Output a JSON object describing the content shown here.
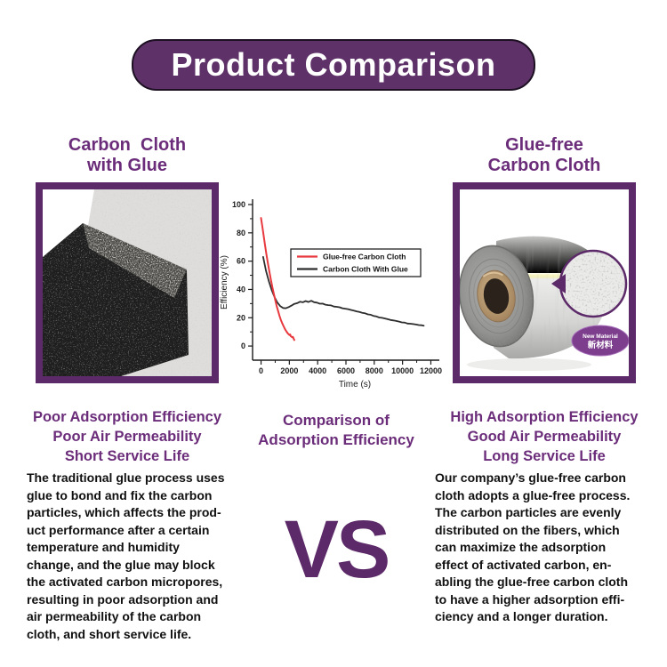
{
  "banner": {
    "title": "Product Comparison"
  },
  "left_column": {
    "heading": "Carbon  Cloth\nwith Glue",
    "subtitle": "Poor Adsorption Efficiency\nPoor Air Permeability\nShort Service Life",
    "body": "The traditional glue process uses\nglue to bond and fix the carbon\nparticles, which affects the prod-\nuct performance after a certain\ntemperature and humidity\nchange, and the glue may block\nthe activated carbon micropores,\nresulting in poor adsorption and\nair permeability of the carbon\ncloth, and short service life."
  },
  "center_column": {
    "subtitle": "Comparison of\nAdsorption Efficiency",
    "vs_label": "VS"
  },
  "right_column": {
    "heading": "Glue-free\nCarbon Cloth",
    "subtitle": "High Adsorption Efficiency\nGood Air Permeability\nLong Service Life",
    "body": "Our company’s glue-free carbon\ncloth adopts a glue-free process.\nThe carbon particles are evenly\ndistributed on the fibers, which\ncan maximize the adsorption\neffect of activated carbon, en-\nabling the glue-free carbon cloth\nto have a higher adsorption effi-\nciency and a longer duration.",
    "badge_line1": "New Material",
    "badge_line2": "新材料"
  },
  "chart_data": {
    "type": "line",
    "title": "",
    "xlabel": "Time (s)",
    "ylabel": "Efficiency (%)",
    "xlim": [
      -600,
      12600
    ],
    "ylim": [
      -10,
      100
    ],
    "xticks": [
      0,
      2000,
      4000,
      6000,
      8000,
      10000,
      12000
    ],
    "yticks": [
      0,
      20,
      40,
      60,
      80,
      100
    ],
    "grid": false,
    "legend_position": "inside upper center",
    "series": [
      {
        "name": "Glue-free Carbon Cloth",
        "color": "#e8393e",
        "points": [
          [
            0,
            90.5
          ],
          [
            100,
            84.0
          ],
          [
            200,
            77.0
          ],
          [
            300,
            70.0
          ],
          [
            400,
            63.5
          ],
          [
            500,
            57.5
          ],
          [
            600,
            52.0
          ],
          [
            700,
            46.5
          ],
          [
            800,
            41.5
          ],
          [
            900,
            37.0
          ],
          [
            1000,
            32.5
          ],
          [
            1100,
            28.5
          ],
          [
            1200,
            25.0
          ],
          [
            1300,
            21.5
          ],
          [
            1400,
            18.5
          ],
          [
            1500,
            16.0
          ],
          [
            1600,
            13.8
          ],
          [
            1700,
            11.8
          ],
          [
            1800,
            10.2
          ],
          [
            1900,
            8.8
          ],
          [
            2000,
            7.8
          ],
          [
            2050,
            8.2
          ],
          [
            2100,
            6.9
          ],
          [
            2200,
            6.2
          ],
          [
            2250,
            6.5
          ],
          [
            2350,
            4.3
          ]
        ]
      },
      {
        "name": "Carbon Cloth With Glue",
        "color": "#2d2d2d",
        "points": [
          [
            150,
            63.0
          ],
          [
            350,
            53.2
          ],
          [
            550,
            45.8
          ],
          [
            750,
            39.6
          ],
          [
            950,
            34.6
          ],
          [
            1150,
            30.8
          ],
          [
            1350,
            28.3
          ],
          [
            1550,
            26.9
          ],
          [
            1750,
            26.7
          ],
          [
            1950,
            27.5
          ],
          [
            2150,
            28.6
          ],
          [
            2350,
            29.8
          ],
          [
            2550,
            30.3
          ],
          [
            2750,
            31.3
          ],
          [
            2950,
            30.9
          ],
          [
            3150,
            31.8
          ],
          [
            3350,
            31.1
          ],
          [
            3550,
            32.0
          ],
          [
            3750,
            31.0
          ],
          [
            3950,
            30.7
          ],
          [
            4150,
            29.9
          ],
          [
            4350,
            30.0
          ],
          [
            4550,
            29.2
          ],
          [
            4750,
            28.9
          ],
          [
            4950,
            28.7
          ],
          [
            5150,
            27.9
          ],
          [
            5350,
            27.7
          ],
          [
            5550,
            27.4
          ],
          [
            5750,
            26.7
          ],
          [
            5950,
            26.4
          ],
          [
            6150,
            26.1
          ],
          [
            6350,
            25.5
          ],
          [
            6550,
            25.1
          ],
          [
            6750,
            24.5
          ],
          [
            6950,
            24.1
          ],
          [
            7150,
            23.5
          ],
          [
            7350,
            23.1
          ],
          [
            7550,
            22.4
          ],
          [
            7750,
            22.1
          ],
          [
            7950,
            21.3
          ],
          [
            8150,
            20.9
          ],
          [
            8350,
            20.2
          ],
          [
            8550,
            19.9
          ],
          [
            8750,
            19.5
          ],
          [
            8950,
            19.0
          ],
          [
            9150,
            18.4
          ],
          [
            9350,
            18.1
          ],
          [
            9550,
            17.7
          ],
          [
            9750,
            17.3
          ],
          [
            9950,
            16.7
          ],
          [
            10150,
            16.6
          ],
          [
            10350,
            15.9
          ],
          [
            10550,
            15.8
          ],
          [
            10750,
            15.5
          ],
          [
            10950,
            15.2
          ],
          [
            11150,
            14.8
          ],
          [
            11350,
            14.7
          ],
          [
            11500,
            14.4
          ]
        ]
      }
    ]
  },
  "colors": {
    "banner_purple": "#5e3168",
    "banner_border": "#1c1022",
    "frame_purple": "#5c2a68",
    "heading_purple": "#6b2d7a",
    "badge_purple": "#7c3e8d",
    "line_red": "#e8393e",
    "line_black": "#2d2d2d",
    "body_text": "#101010"
  }
}
